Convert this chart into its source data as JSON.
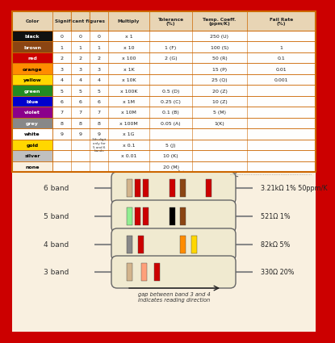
{
  "border_color": "#cc0000",
  "table_border_color": "#cc6600",
  "table_bg": "#f9f0e0",
  "resistor_bg": "#f9f0e0",
  "table_colors": {
    "black": "#111111",
    "brown": "#8B4513",
    "red": "#cc0000",
    "orange": "#FF8C00",
    "yellow": "#FFD700",
    "green": "#228B22",
    "blue": "#0000CD",
    "violet": "#8B008B",
    "grey": "#888888",
    "white": "#FFFFFF",
    "gold": "#FFD700",
    "silver": "#C0C0C0",
    "none": "#f9f0e0"
  },
  "table_text_colors": {
    "black": "#FFFFFF",
    "brown": "#FFFFFF",
    "red": "#FFFFFF",
    "orange": "#000000",
    "yellow": "#000000",
    "green": "#FFFFFF",
    "blue": "#FFFFFF",
    "violet": "#FFFFFF",
    "grey": "#FFFFFF",
    "white": "#000000",
    "gold": "#000000",
    "silver": "#000000",
    "none": "#000000"
  },
  "rows": [
    {
      "color": "black",
      "sig1": "0",
      "sig2": "0",
      "sig3": "0",
      "mult": "x 1",
      "tol": "",
      "temp": "250 (U)",
      "fail": ""
    },
    {
      "color": "brown",
      "sig1": "1",
      "sig2": "1",
      "sig3": "1",
      "mult": "x 10",
      "tol": "1 (F)",
      "temp": "100 (S)",
      "fail": "1"
    },
    {
      "color": "red",
      "sig1": "2",
      "sig2": "2",
      "sig3": "2",
      "mult": "x 100",
      "tol": "2 (G)",
      "temp": "50 (R)",
      "fail": "0.1"
    },
    {
      "color": "orange",
      "sig1": "3",
      "sig2": "3",
      "sig3": "3",
      "mult": "x 1K",
      "tol": "",
      "temp": "15 (P)",
      "fail": "0.01"
    },
    {
      "color": "yellow",
      "sig1": "4",
      "sig2": "4",
      "sig3": "4",
      "mult": "x 10K",
      "tol": "",
      "temp": "25 (Q)",
      "fail": "0.001"
    },
    {
      "color": "green",
      "sig1": "5",
      "sig2": "5",
      "sig3": "5",
      "mult": "x 100K",
      "tol": "0.5 (D)",
      "temp": "20 (Z)",
      "fail": ""
    },
    {
      "color": "blue",
      "sig1": "6",
      "sig2": "6",
      "sig3": "6",
      "mult": "x 1M",
      "tol": "0.25 (C)",
      "temp": "10 (Z)",
      "fail": ""
    },
    {
      "color": "violet",
      "sig1": "7",
      "sig2": "7",
      "sig3": "7",
      "mult": "x 10M",
      "tol": "0.1 (B)",
      "temp": "5 (M)",
      "fail": ""
    },
    {
      "color": "grey",
      "sig1": "8",
      "sig2": "8",
      "sig3": "8",
      "mult": "x 100M",
      "tol": "0.05 (A)",
      "temp": "1(K)",
      "fail": ""
    },
    {
      "color": "white",
      "sig1": "9",
      "sig2": "9",
      "sig3": "9",
      "mult": "x 1G",
      "tol": "",
      "temp": "",
      "fail": ""
    },
    {
      "color": "gold",
      "sig1": "",
      "sig2": "",
      "sig3": "3th digit\nonly for\n5 and 6\nbands",
      "mult": "x 0.1",
      "tol": "5 (J)",
      "temp": "",
      "fail": ""
    },
    {
      "color": "silver",
      "sig1": "",
      "sig2": "",
      "sig3": "",
      "mult": "x 0.01",
      "tol": "10 (K)",
      "temp": "",
      "fail": ""
    },
    {
      "color": "none",
      "sig1": "",
      "sig2": "",
      "sig3": "",
      "mult": "",
      "tol": "20 (M)",
      "temp": "",
      "fail": ""
    }
  ],
  "resistor_body_color": "#f0ead0",
  "resistor_lead_color": "#888888",
  "resistors": [
    {
      "label": "6 band",
      "n": 6,
      "bands": [
        "#D2B48C",
        "#cc0000",
        "#cc0000",
        "#cc0000",
        "#8B4513",
        "#cc0000"
      ],
      "value_text": "3.21kΩ 1% 50ppm/K"
    },
    {
      "label": "5 band",
      "n": 5,
      "bands": [
        "#90EE90",
        "#cc0000",
        "#cc0000",
        "#000000",
        "#8B4513"
      ],
      "value_text": "521Ω 1%"
    },
    {
      "label": "4 band",
      "n": 4,
      "bands": [
        "#888888",
        "#cc0000",
        "#FF8C00",
        "#FFD700"
      ],
      "value_text": "82kΩ 5%"
    },
    {
      "label": "3 band",
      "n": 3,
      "bands": [
        "#D2B48C",
        "#FFA07A",
        "#cc0000"
      ],
      "value_text": "330Ω 20%"
    }
  ],
  "arrow_text": "gap between band 3 and 4\nindicates reading direction"
}
